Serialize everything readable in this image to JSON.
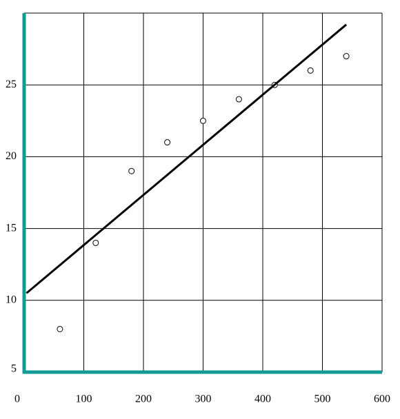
{
  "chart_data": {
    "type": "scatter",
    "xlim": [
      0,
      600
    ],
    "xticks": [
      0,
      100,
      200,
      300,
      400,
      500,
      600
    ],
    "ylim": [
      5,
      30
    ],
    "yticks": [
      5,
      10,
      15,
      20,
      25
    ],
    "grid": true,
    "axis_color": "#139a94",
    "series": [
      {
        "type": "scatter",
        "color": "#000000",
        "x": [
          60,
          120,
          180,
          240,
          300,
          360,
          420,
          480,
          540
        ],
        "values": [
          8,
          14,
          19,
          21,
          22.5,
          24,
          25,
          26,
          27
        ]
      },
      {
        "type": "line",
        "color": "#000000",
        "x": [
          4,
          540
        ],
        "values": [
          10.5,
          29.2
        ]
      }
    ]
  }
}
